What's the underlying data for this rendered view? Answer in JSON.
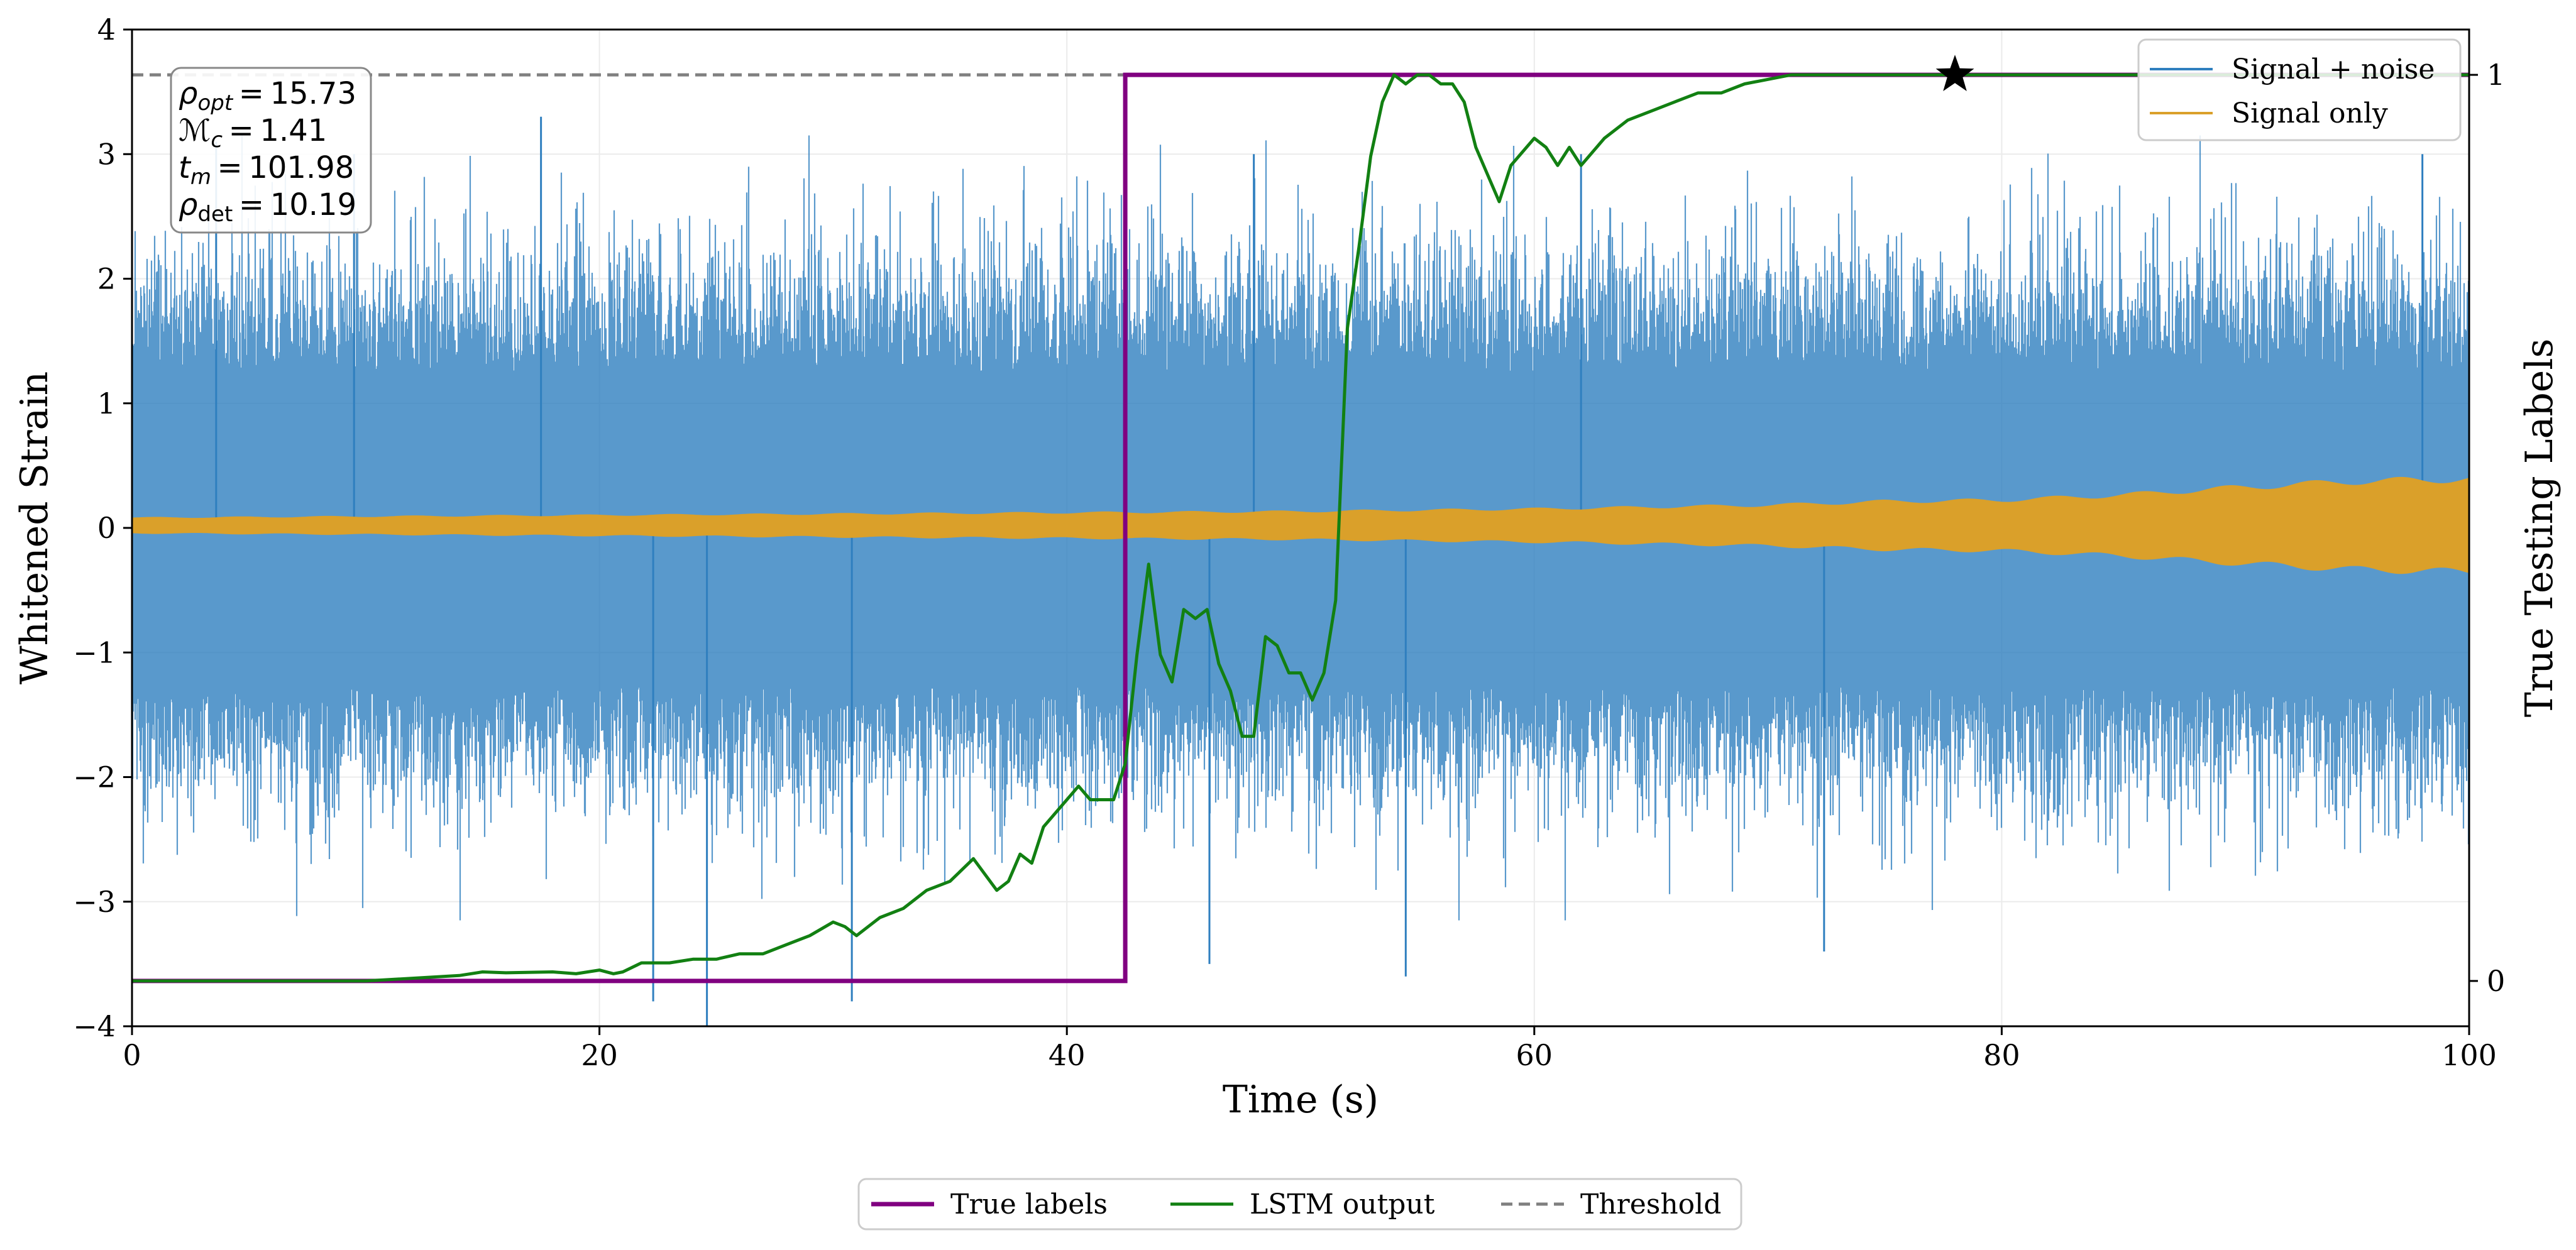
{
  "chart_data": {
    "type": "line",
    "xlabel": "Time (s)",
    "ylabel_left": "Whitened Strain",
    "ylabel_right": "True Testing Labels",
    "xlim": [
      0,
      100
    ],
    "ylim_left": [
      -4,
      4
    ],
    "ylim_right": [
      -0.05,
      1.05
    ],
    "x_ticks": [
      "0",
      "20",
      "40",
      "60",
      "80",
      "100"
    ],
    "y_ticks_left": [
      "4",
      "3",
      "2",
      "1",
      "0",
      "−1",
      "−2",
      "−3",
      "−4"
    ],
    "y_ticks_right": [
      "1",
      "0"
    ],
    "grid": true,
    "series": [
      {
        "name": "Signal + noise",
        "color": "#2f7fbf",
        "style": "noise band",
        "typical_amplitude": 1.0,
        "extreme_positive_values": [
          3.3,
          3.1,
          3.0,
          3.0,
          3.0,
          3.0
        ],
        "extreme_negative_values": [
          -3.8,
          -4.0,
          -3.8,
          -3.5,
          -3.6,
          -3.4
        ]
      },
      {
        "name": "Signal only",
        "color": "#daa02a",
        "style": "envelope",
        "x": [
          0,
          10,
          20,
          30,
          40,
          50,
          60,
          70,
          75,
          80,
          85,
          90,
          95,
          100
        ],
        "amplitude": [
          0.06,
          0.07,
          0.08,
          0.09,
          0.1,
          0.11,
          0.13,
          0.16,
          0.19,
          0.2,
          0.24,
          0.3,
          0.35,
          0.37
        ]
      },
      {
        "name": "True labels",
        "color": "#800080",
        "axis": "right",
        "x": [
          0,
          42.5,
          42.5,
          100
        ],
        "y": [
          0,
          0,
          1,
          1
        ]
      },
      {
        "name": "LSTM output",
        "color": "#128012",
        "axis": "right",
        "x": [
          0,
          10,
          12,
          14,
          15,
          16,
          18,
          19,
          20,
          20.6,
          21,
          21.8,
          22,
          22.5,
          23,
          24,
          25,
          26,
          27,
          28,
          29,
          30,
          30.5,
          31,
          32,
          33,
          34,
          35,
          36,
          37,
          37.5,
          38,
          38.5,
          39,
          40,
          40.5,
          41,
          42,
          42.5,
          43,
          43.5,
          44,
          44.5,
          45,
          45.5,
          46,
          46.5,
          47,
          47.5,
          48,
          48.5,
          49,
          49.5,
          50,
          50.5,
          51,
          51.5,
          52,
          52.5,
          53,
          53.5,
          54,
          54.5,
          55,
          55.5,
          56,
          56.5,
          57,
          57.5,
          58,
          58.5,
          59,
          60,
          60.5,
          61,
          61.5,
          62,
          63,
          64,
          65,
          66,
          67,
          68,
          69,
          70,
          71,
          72,
          73,
          74,
          75,
          80,
          85,
          90,
          95,
          100
        ],
        "y": [
          0,
          0,
          0.003,
          0.006,
          0.01,
          0.009,
          0.01,
          0.008,
          0.012,
          0.008,
          0.01,
          0.02,
          0.02,
          0.02,
          0.02,
          0.024,
          0.024,
          0.03,
          0.03,
          0.04,
          0.05,
          0.065,
          0.06,
          0.05,
          0.07,
          0.08,
          0.1,
          0.11,
          0.135,
          0.1,
          0.11,
          0.14,
          0.13,
          0.17,
          0.2,
          0.215,
          0.2,
          0.2,
          0.24,
          0.36,
          0.46,
          0.36,
          0.33,
          0.41,
          0.4,
          0.41,
          0.35,
          0.32,
          0.27,
          0.27,
          0.38,
          0.37,
          0.34,
          0.34,
          0.31,
          0.34,
          0.42,
          0.72,
          0.81,
          0.91,
          0.97,
          1.0,
          0.99,
          1.0,
          1.0,
          0.99,
          0.99,
          0.97,
          0.92,
          0.89,
          0.86,
          0.9,
          0.93,
          0.92,
          0.9,
          0.92,
          0.9,
          0.93,
          0.95,
          0.96,
          0.97,
          0.98,
          0.98,
          0.99,
          0.995,
          1.0,
          1.0,
          1.0,
          1.0,
          1.0,
          1.0,
          1.0,
          1.0,
          1.0,
          1.0
        ]
      },
      {
        "name": "Threshold",
        "color": "#808080",
        "style": "dashed",
        "axis": "right",
        "y": 1.0
      }
    ],
    "marker": {
      "type": "star",
      "x": 78,
      "y_right": 1.0,
      "color": "#000000"
    },
    "annotation": {
      "lines": [
        {
          "sym": "ρ",
          "sub": "opt",
          "sub_italic": true,
          "value": "15.73"
        },
        {
          "sym": "ℳ",
          "sub": "c",
          "sub_italic": true,
          "value": "1.41"
        },
        {
          "sym": "t",
          "sub": "m",
          "sub_italic": true,
          "value": "101.98"
        },
        {
          "sym": "ρ",
          "sub": "det",
          "sub_italic": false,
          "value": "10.19"
        }
      ],
      "equals": "="
    },
    "legend_inside": {
      "position": "upper-right",
      "entries": [
        "Signal + noise",
        "Signal only"
      ]
    },
    "legend_below": {
      "position": "bottom-center",
      "entries": [
        "True labels",
        "LSTM output",
        "Threshold"
      ]
    }
  }
}
